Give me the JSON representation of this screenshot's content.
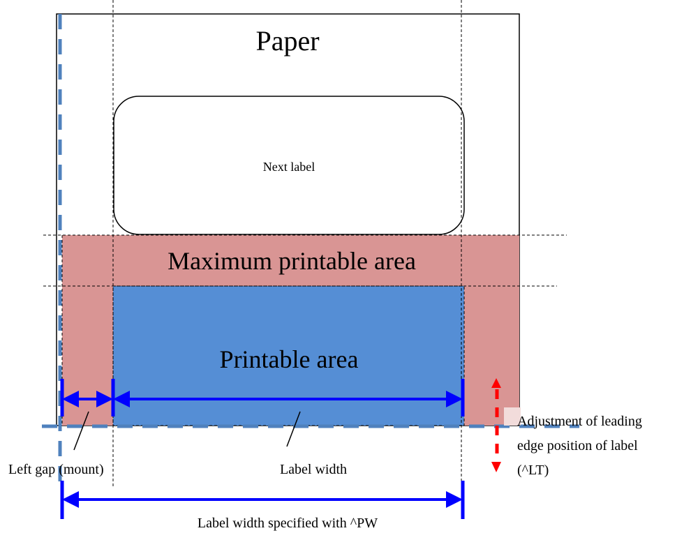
{
  "labels": {
    "paper": "Paper",
    "next_label": "Next label",
    "max_printable_area": "Maximum printable area",
    "printable_area": "Printable area",
    "left_gap": "Left gap (mount)",
    "label_width": "Label width",
    "label_width_pw": "Label width specified with ^PW",
    "adjustment_line1": "Adjustment of leading",
    "adjustment_line2": "edge position of label",
    "adjustment_line3": "(^LT)"
  },
  "colors": {
    "max_printable_fill": "#d99594",
    "printable_fill": "#558ed5",
    "dimension_arrow": "#0000ff",
    "adjust_arrow": "#ff0000",
    "origin_dash": "#4f81bd",
    "outline": "#000000"
  }
}
